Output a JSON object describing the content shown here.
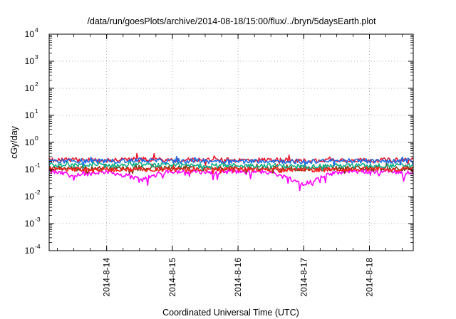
{
  "chart_data": {
    "type": "line",
    "title": "/data/run/goesPlots/archive/2014-08-18/15:00/flux/../bryn/5daysEarth.plot",
    "xlabel": "Coordinated Universal Time (UTC)",
    "ylabel": "cGy/day",
    "y_scale": "log",
    "ylim": [
      0.0001,
      10000
    ],
    "y_ticks": [
      {
        "base": "10",
        "exp": "-4",
        "value": 0.0001
      },
      {
        "base": "10",
        "exp": "-3",
        "value": 0.001
      },
      {
        "base": "10",
        "exp": "-2",
        "value": 0.01
      },
      {
        "base": "10",
        "exp": "-1",
        "value": 0.1
      },
      {
        "base": "10",
        "exp": "0",
        "value": 1
      },
      {
        "base": "10",
        "exp": "1",
        "value": 10
      },
      {
        "base": "10",
        "exp": "2",
        "value": 100
      },
      {
        "base": "10",
        "exp": "3",
        "value": 1000
      },
      {
        "base": "10",
        "exp": "4",
        "value": 10000
      }
    ],
    "xlim": [
      "2014-08-13 03:00",
      "2014-08-18 16:00"
    ],
    "x_ticks": [
      "2014-8-14",
      "2014-8-15",
      "2014-8-16",
      "2014-8-17",
      "2014-8-18"
    ],
    "grid": true,
    "legend": "none",
    "series": [
      {
        "color": "#e8192c",
        "approx_level": 0.22,
        "x": [
          "2014-08-13 03:00",
          "2014-08-13 12:00",
          "2014-08-14 00:00",
          "2014-08-14 12:00",
          "2014-08-15 00:00",
          "2014-08-15 12:00",
          "2014-08-16 00:00",
          "2014-08-16 12:00",
          "2014-08-17 00:00",
          "2014-08-17 12:00",
          "2014-08-18 00:00",
          "2014-08-18 16:00"
        ],
        "values": [
          0.22,
          0.23,
          0.22,
          0.24,
          0.22,
          0.23,
          0.22,
          0.23,
          0.21,
          0.23,
          0.22,
          0.23
        ]
      },
      {
        "color": "#1e6be6",
        "approx_level": 0.2,
        "x": [
          "2014-08-13 03:00",
          "2014-08-13 12:00",
          "2014-08-14 00:00",
          "2014-08-14 12:00",
          "2014-08-15 00:00",
          "2014-08-15 12:00",
          "2014-08-16 00:00",
          "2014-08-16 12:00",
          "2014-08-17 00:00",
          "2014-08-17 12:00",
          "2014-08-18 00:00",
          "2014-08-18 16:00"
        ],
        "values": [
          0.2,
          0.21,
          0.2,
          0.22,
          0.2,
          0.21,
          0.2,
          0.21,
          0.19,
          0.21,
          0.2,
          0.21
        ]
      },
      {
        "color": "#13b08a",
        "approx_level": 0.14,
        "x": [
          "2014-08-13 03:00",
          "2014-08-13 12:00",
          "2014-08-14 00:00",
          "2014-08-14 12:00",
          "2014-08-15 00:00",
          "2014-08-15 12:00",
          "2014-08-16 00:00",
          "2014-08-16 12:00",
          "2014-08-17 00:00",
          "2014-08-17 12:00",
          "2014-08-18 00:00",
          "2014-08-18 16:00"
        ],
        "values": [
          0.14,
          0.14,
          0.14,
          0.15,
          0.14,
          0.14,
          0.14,
          0.14,
          0.13,
          0.14,
          0.14,
          0.14
        ]
      },
      {
        "color": "#7a3d12",
        "approx_level": 0.11,
        "x": [
          "2014-08-13 03:00",
          "2014-08-13 12:00",
          "2014-08-14 00:00",
          "2014-08-14 12:00",
          "2014-08-15 00:00",
          "2014-08-15 12:00",
          "2014-08-16 00:00",
          "2014-08-16 12:00",
          "2014-08-17 00:00",
          "2014-08-17 12:00",
          "2014-08-18 00:00",
          "2014-08-18 16:00"
        ],
        "values": [
          0.11,
          0.11,
          0.11,
          0.11,
          0.11,
          0.11,
          0.11,
          0.11,
          0.105,
          0.11,
          0.11,
          0.11
        ]
      },
      {
        "color": "#ff2424",
        "approx_level": 0.1,
        "x": [
          "2014-08-13 03:00",
          "2014-08-13 12:00",
          "2014-08-14 00:00",
          "2014-08-14 12:00",
          "2014-08-15 00:00",
          "2014-08-15 12:00",
          "2014-08-16 00:00",
          "2014-08-16 12:00",
          "2014-08-17 00:00",
          "2014-08-17 12:00",
          "2014-08-18 00:00",
          "2014-08-18 16:00"
        ],
        "values": [
          0.1,
          0.1,
          0.1,
          0.1,
          0.1,
          0.1,
          0.1,
          0.1,
          0.095,
          0.1,
          0.1,
          0.1
        ]
      },
      {
        "color": "#ff00ff",
        "approx_level": 0.085,
        "x": [
          "2014-08-13 03:00",
          "2014-08-13 12:00",
          "2014-08-14 00:00",
          "2014-08-14 12:00",
          "2014-08-15 00:00",
          "2014-08-15 12:00",
          "2014-08-16 00:00",
          "2014-08-16 12:00",
          "2014-08-17 00:00",
          "2014-08-17 12:00",
          "2014-08-18 00:00",
          "2014-08-18 16:00"
        ],
        "values": [
          0.085,
          0.06,
          0.085,
          0.045,
          0.085,
          0.08,
          0.085,
          0.08,
          0.03,
          0.08,
          0.085,
          0.08
        ]
      }
    ]
  }
}
